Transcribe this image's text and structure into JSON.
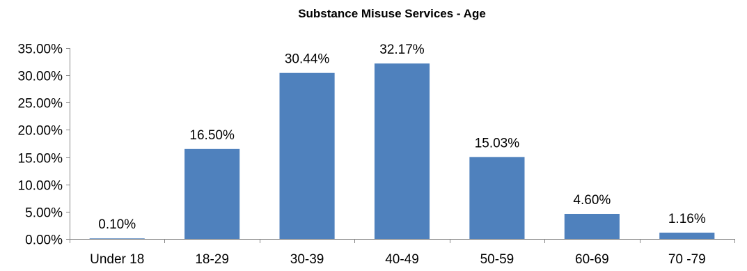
{
  "chart_data": {
    "type": "bar",
    "title": "Substance Misuse Services - Age",
    "xlabel": "",
    "ylabel": "",
    "categories": [
      "Under 18",
      "18-29",
      "30-39",
      "40-49",
      "50-59",
      "60-69",
      "70 -79"
    ],
    "values": [
      0.1,
      16.5,
      30.44,
      32.17,
      15.03,
      4.6,
      1.16
    ],
    "data_labels": [
      "0.10%",
      "16.50%",
      "30.44%",
      "32.17%",
      "15.03%",
      "4.60%",
      "1.16%"
    ],
    "ylim": [
      0,
      35
    ],
    "y_ticks": [
      0,
      5,
      10,
      15,
      20,
      25,
      30,
      35
    ],
    "y_tick_labels": [
      "0.00%",
      "5.00%",
      "10.00%",
      "15.00%",
      "20.00%",
      "25.00%",
      "30.00%",
      "35.00%"
    ],
    "grid": false,
    "legend": "none",
    "colors": {
      "bar": "#4F81BD",
      "axis": "#868686",
      "text": "#000000"
    }
  }
}
